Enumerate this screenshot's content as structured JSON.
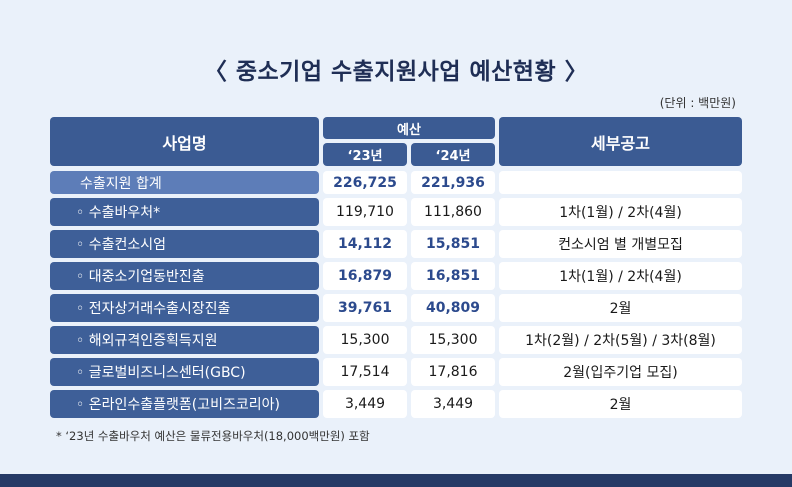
{
  "title": "〈 중소기업 수출지원사업 예산현황 〉",
  "unit": "(단위 : 백만원)",
  "headers": {
    "name": "사업명",
    "budget": "예산",
    "y23": "‘23년",
    "y24": "‘24년",
    "notice": "세부공고"
  },
  "rows": [
    {
      "name": "수출지원 합계",
      "y23": "226,725",
      "y24": "221,936",
      "notice": ""
    },
    {
      "name": "◦ 수출바우처*",
      "y23": "119,710",
      "y24": "111,860",
      "notice": "1차(1월) / 2차(4월)"
    },
    {
      "name": "◦ 수출컨소시엄",
      "y23": "14,112",
      "y24": "15,851",
      "notice": "컨소시엄 별 개별모집"
    },
    {
      "name": "◦ 대중소기업동반진출",
      "y23": "16,879",
      "y24": "16,851",
      "notice": "1차(1월) / 2차(4월)"
    },
    {
      "name": "◦ 전자상거래수출시장진출",
      "y23": "39,761",
      "y24": "40,809",
      "notice": "2월"
    },
    {
      "name": "◦ 해외규격인증획득지원",
      "y23": "15,300",
      "y24": "15,300",
      "notice": "1차(2월) / 2차(5월) / 3차(8월)"
    },
    {
      "name": "◦ 글로벌비즈니스센터(GBC)",
      "y23": "17,514",
      "y24": "17,816",
      "notice": "2월(입주기업 모집)"
    },
    {
      "name": "◦ 온라인수출플랫폼(고비즈코리아)",
      "y23": "3,449",
      "y24": "3,449",
      "notice": "2월"
    }
  ],
  "footnote": "* ‘23년 수출바우처 예산은 물류전용바우처(18,000백만원) 포함"
}
